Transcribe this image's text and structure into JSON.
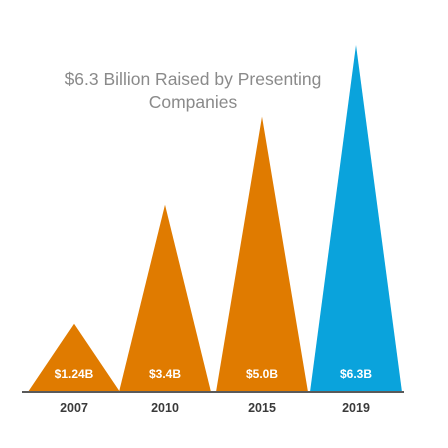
{
  "chart_data": {
    "type": "bar",
    "title_lines": [
      "$6.3 Billion Raised by Presenting",
      "Companies"
    ],
    "categories": [
      "2007",
      "2010",
      "2015",
      "2019"
    ],
    "values": [
      1.24,
      3.4,
      5.0,
      6.3
    ],
    "value_labels": [
      "$1.24B",
      "$3.4B",
      "$5.0B",
      "$6.3B"
    ],
    "unit": "$B",
    "xlabel": "",
    "ylabel": "",
    "ylim": [
      0,
      6.3
    ],
    "grid": false,
    "bar_shape": "triangle",
    "colors": [
      "#e07b00",
      "#e07b00",
      "#e07b00",
      "#0aa3dc"
    ]
  },
  "colors": {
    "baseline": "#5a5a5a",
    "title": "#8a8a8a",
    "tick": "#3a3a3a",
    "value_label": "#ffffff"
  }
}
